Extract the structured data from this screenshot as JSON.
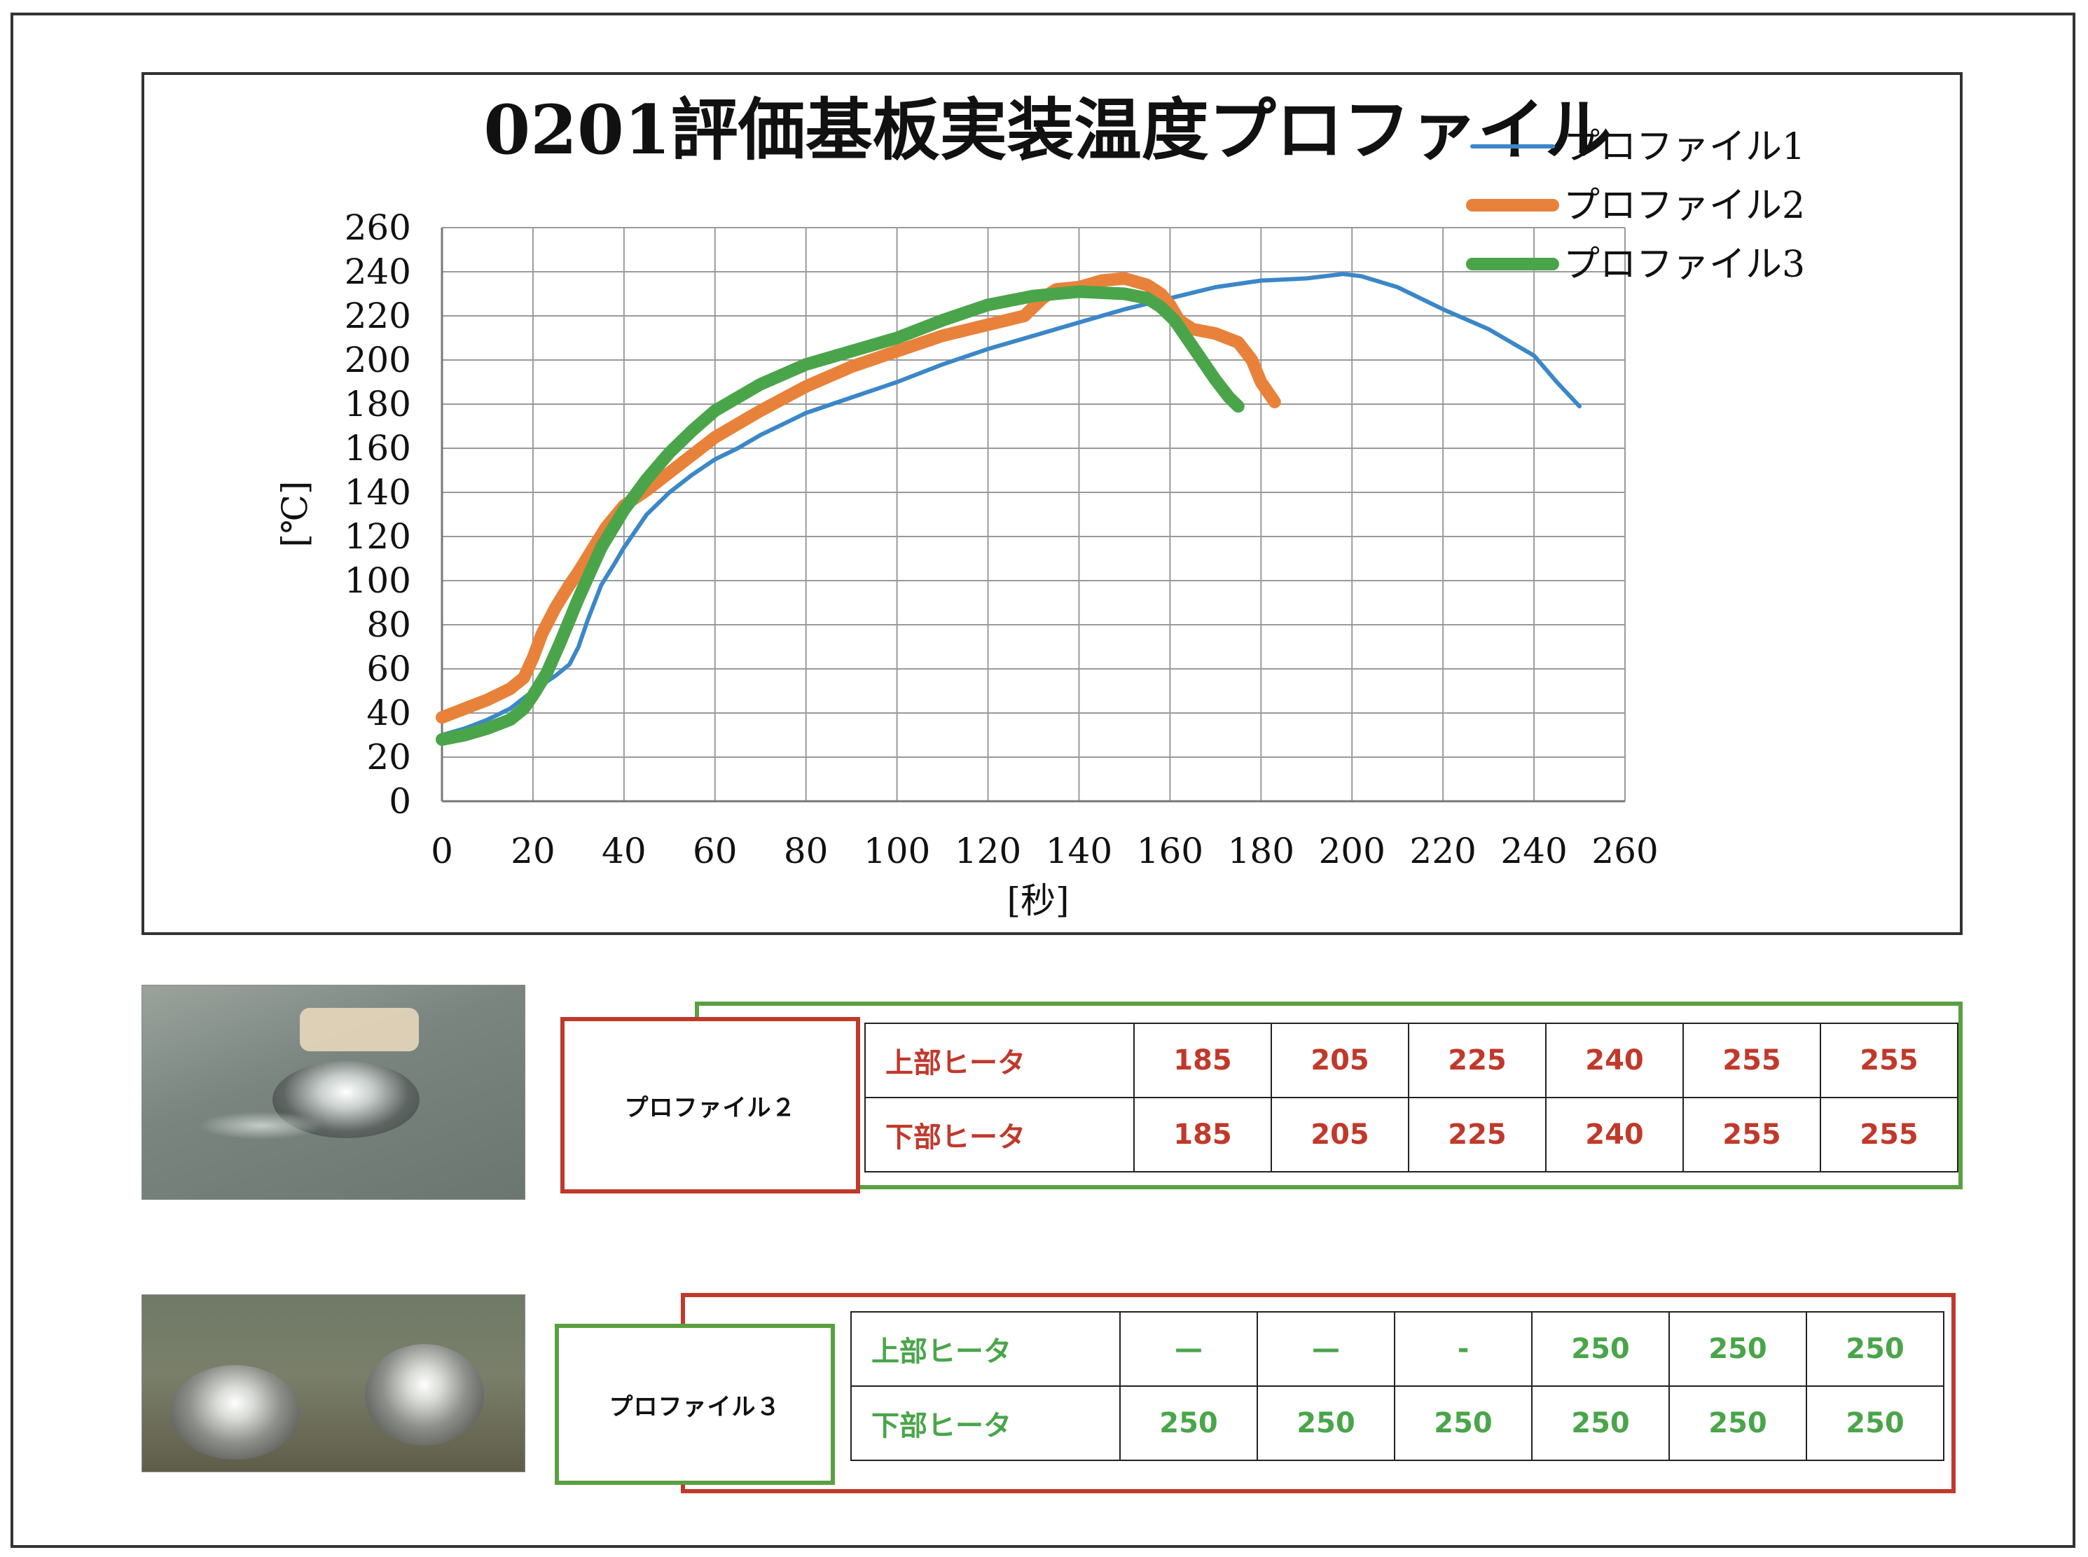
{
  "chart_data": {
    "type": "line",
    "title": "0201評価基板実装温度プロファイル",
    "xlabel": "[秒]",
    "ylabel": "[℃]",
    "xlim": [
      0,
      260
    ],
    "ylim": [
      0,
      260
    ],
    "x_ticks": [
      0,
      20,
      40,
      60,
      80,
      100,
      120,
      140,
      160,
      180,
      200,
      220,
      240,
      260
    ],
    "y_ticks": [
      0,
      20,
      40,
      60,
      80,
      100,
      120,
      140,
      160,
      180,
      200,
      220,
      240,
      260
    ],
    "grid": true,
    "legend_position": "top-right",
    "series": [
      {
        "name": "プロファイル1",
        "color": "#3b87c8",
        "x": [
          0,
          5,
          10,
          15,
          20,
          25,
          28,
          30,
          32,
          35,
          38,
          40,
          45,
          50,
          55,
          60,
          65,
          70,
          75,
          80,
          90,
          100,
          110,
          120,
          130,
          140,
          150,
          160,
          170,
          180,
          190,
          198,
          202,
          210,
          220,
          230,
          240,
          245,
          250
        ],
        "y": [
          30,
          33,
          37,
          42,
          50,
          57,
          62,
          70,
          82,
          98,
          108,
          115,
          130,
          140,
          148,
          155,
          160,
          166,
          171,
          176,
          183,
          190,
          198,
          205,
          211,
          217,
          223,
          228,
          233,
          236,
          237,
          239,
          238,
          233,
          223,
          214,
          202,
          190,
          179
        ]
      },
      {
        "name": "プロファイル2",
        "color": "#e8823a",
        "x": [
          0,
          5,
          10,
          15,
          18,
          20,
          22,
          25,
          28,
          30,
          33,
          36,
          40,
          45,
          50,
          55,
          60,
          70,
          80,
          90,
          100,
          110,
          120,
          128,
          132,
          135,
          140,
          145,
          150,
          155,
          158,
          160,
          162,
          165,
          170,
          175,
          178,
          180,
          183
        ],
        "y": [
          38,
          42,
          46,
          51,
          56,
          65,
          76,
          88,
          98,
          104,
          114,
          124,
          134,
          141,
          149,
          157,
          165,
          177,
          188,
          197,
          204,
          211,
          216,
          220,
          228,
          232,
          233,
          236,
          237,
          234,
          230,
          225,
          218,
          214,
          212,
          208,
          200,
          190,
          181
        ]
      },
      {
        "name": "プロファイル3",
        "color": "#4aa54a",
        "x": [
          0,
          5,
          10,
          15,
          18,
          20,
          23,
          26,
          30,
          35,
          40,
          45,
          50,
          55,
          60,
          70,
          80,
          90,
          100,
          110,
          120,
          130,
          140,
          150,
          155,
          158,
          161,
          164,
          167,
          170,
          173,
          175
        ],
        "y": [
          28,
          30,
          33,
          37,
          42,
          48,
          58,
          72,
          92,
          115,
          132,
          146,
          158,
          168,
          177,
          189,
          198,
          204,
          210,
          218,
          225,
          229,
          231,
          230,
          228,
          224,
          218,
          209,
          200,
          191,
          183,
          179
        ]
      }
    ]
  },
  "panel2": {
    "label": "プロファイル２",
    "rows": [
      {
        "label": "上部ヒータ",
        "values": [
          "185",
          "205",
          "225",
          "240",
          "255",
          "255"
        ]
      },
      {
        "label": "下部ヒータ",
        "values": [
          "185",
          "205",
          "225",
          "240",
          "255",
          "255"
        ]
      }
    ],
    "label_border_color": "#c0392b",
    "table_border_color": "#5aa040",
    "text_color": "#c0392b"
  },
  "panel3": {
    "label": "プロファイル３",
    "rows": [
      {
        "label": "上部ヒータ",
        "values": [
          "—",
          "—",
          "-",
          "250",
          "250",
          "250"
        ]
      },
      {
        "label": "下部ヒータ",
        "values": [
          "250",
          "250",
          "250",
          "250",
          "250",
          "250"
        ]
      }
    ],
    "label_border_color": "#5aa040",
    "table_border_color": "#c0392b",
    "text_color": "#4aa54a"
  }
}
